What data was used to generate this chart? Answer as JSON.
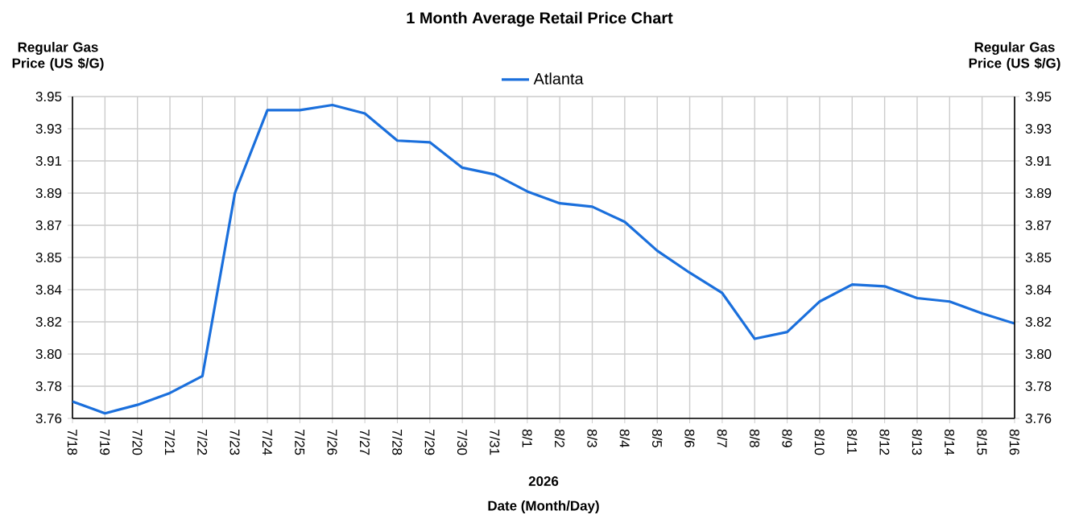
{
  "chart_data": {
    "type": "line",
    "title": "1 Month Average Retail Price Chart",
    "xlabel": "Date (Month/Day)",
    "ylabel": "Regular Gas Price (US $/G)",
    "y2label": "Regular Gas Price (US $/G)",
    "annotations": [
      "2026"
    ],
    "categories": [
      "7/18",
      "7/19",
      "7/20",
      "7/21",
      "7/22",
      "7/23",
      "7/24",
      "7/25",
      "7/26",
      "7/27",
      "7/28",
      "7/29",
      "7/30",
      "7/31",
      "8/1",
      "8/2",
      "8/3",
      "8/4",
      "8/5",
      "8/6",
      "8/7",
      "8/8",
      "8/9",
      "8/10",
      "8/11",
      "8/12",
      "8/13",
      "8/14",
      "8/15",
      "8/16"
    ],
    "series": [
      {
        "name": "Atlanta",
        "color": "#1a6fdc",
        "values": [
          3.77,
          3.763,
          3.768,
          3.775,
          3.785,
          3.893,
          3.942,
          3.942,
          3.945,
          3.94,
          3.924,
          3.923,
          3.908,
          3.904,
          3.894,
          3.887,
          3.885,
          3.876,
          3.859,
          3.846,
          3.834,
          3.807,
          3.811,
          3.829,
          3.839,
          3.838,
          3.831,
          3.829,
          3.822,
          3.816
        ]
      }
    ],
    "ylim": [
      3.76,
      3.95
    ],
    "yticks": [
      {
        "value": 3.76,
        "label": "3.76"
      },
      {
        "value": 3.779,
        "label": "3.78"
      },
      {
        "value": 3.798,
        "label": "3.80"
      },
      {
        "value": 3.817,
        "label": "3.82"
      },
      {
        "value": 3.836,
        "label": "3.84"
      },
      {
        "value": 3.855,
        "label": "3.85"
      },
      {
        "value": 3.874,
        "label": "3.87"
      },
      {
        "value": 3.893,
        "label": "3.89"
      },
      {
        "value": 3.912,
        "label": "3.91"
      },
      {
        "value": 3.931,
        "label": "3.93"
      },
      {
        "value": 3.95,
        "label": "3.95"
      }
    ],
    "y2lim": [
      3.76,
      3.95
    ],
    "y2ticks": [
      {
        "value": 3.76,
        "label": "3.76"
      },
      {
        "value": 3.779,
        "label": "3.78"
      },
      {
        "value": 3.798,
        "label": "3.80"
      },
      {
        "value": 3.817,
        "label": "3.82"
      },
      {
        "value": 3.836,
        "label": "3.84"
      },
      {
        "value": 3.855,
        "label": "3.85"
      },
      {
        "value": 3.874,
        "label": "3.87"
      },
      {
        "value": 3.893,
        "label": "3.89"
      },
      {
        "value": 3.912,
        "label": "3.91"
      },
      {
        "value": 3.931,
        "label": "3.93"
      },
      {
        "value": 3.95,
        "label": "3.95"
      }
    ],
    "grid": true,
    "legend": "top"
  }
}
